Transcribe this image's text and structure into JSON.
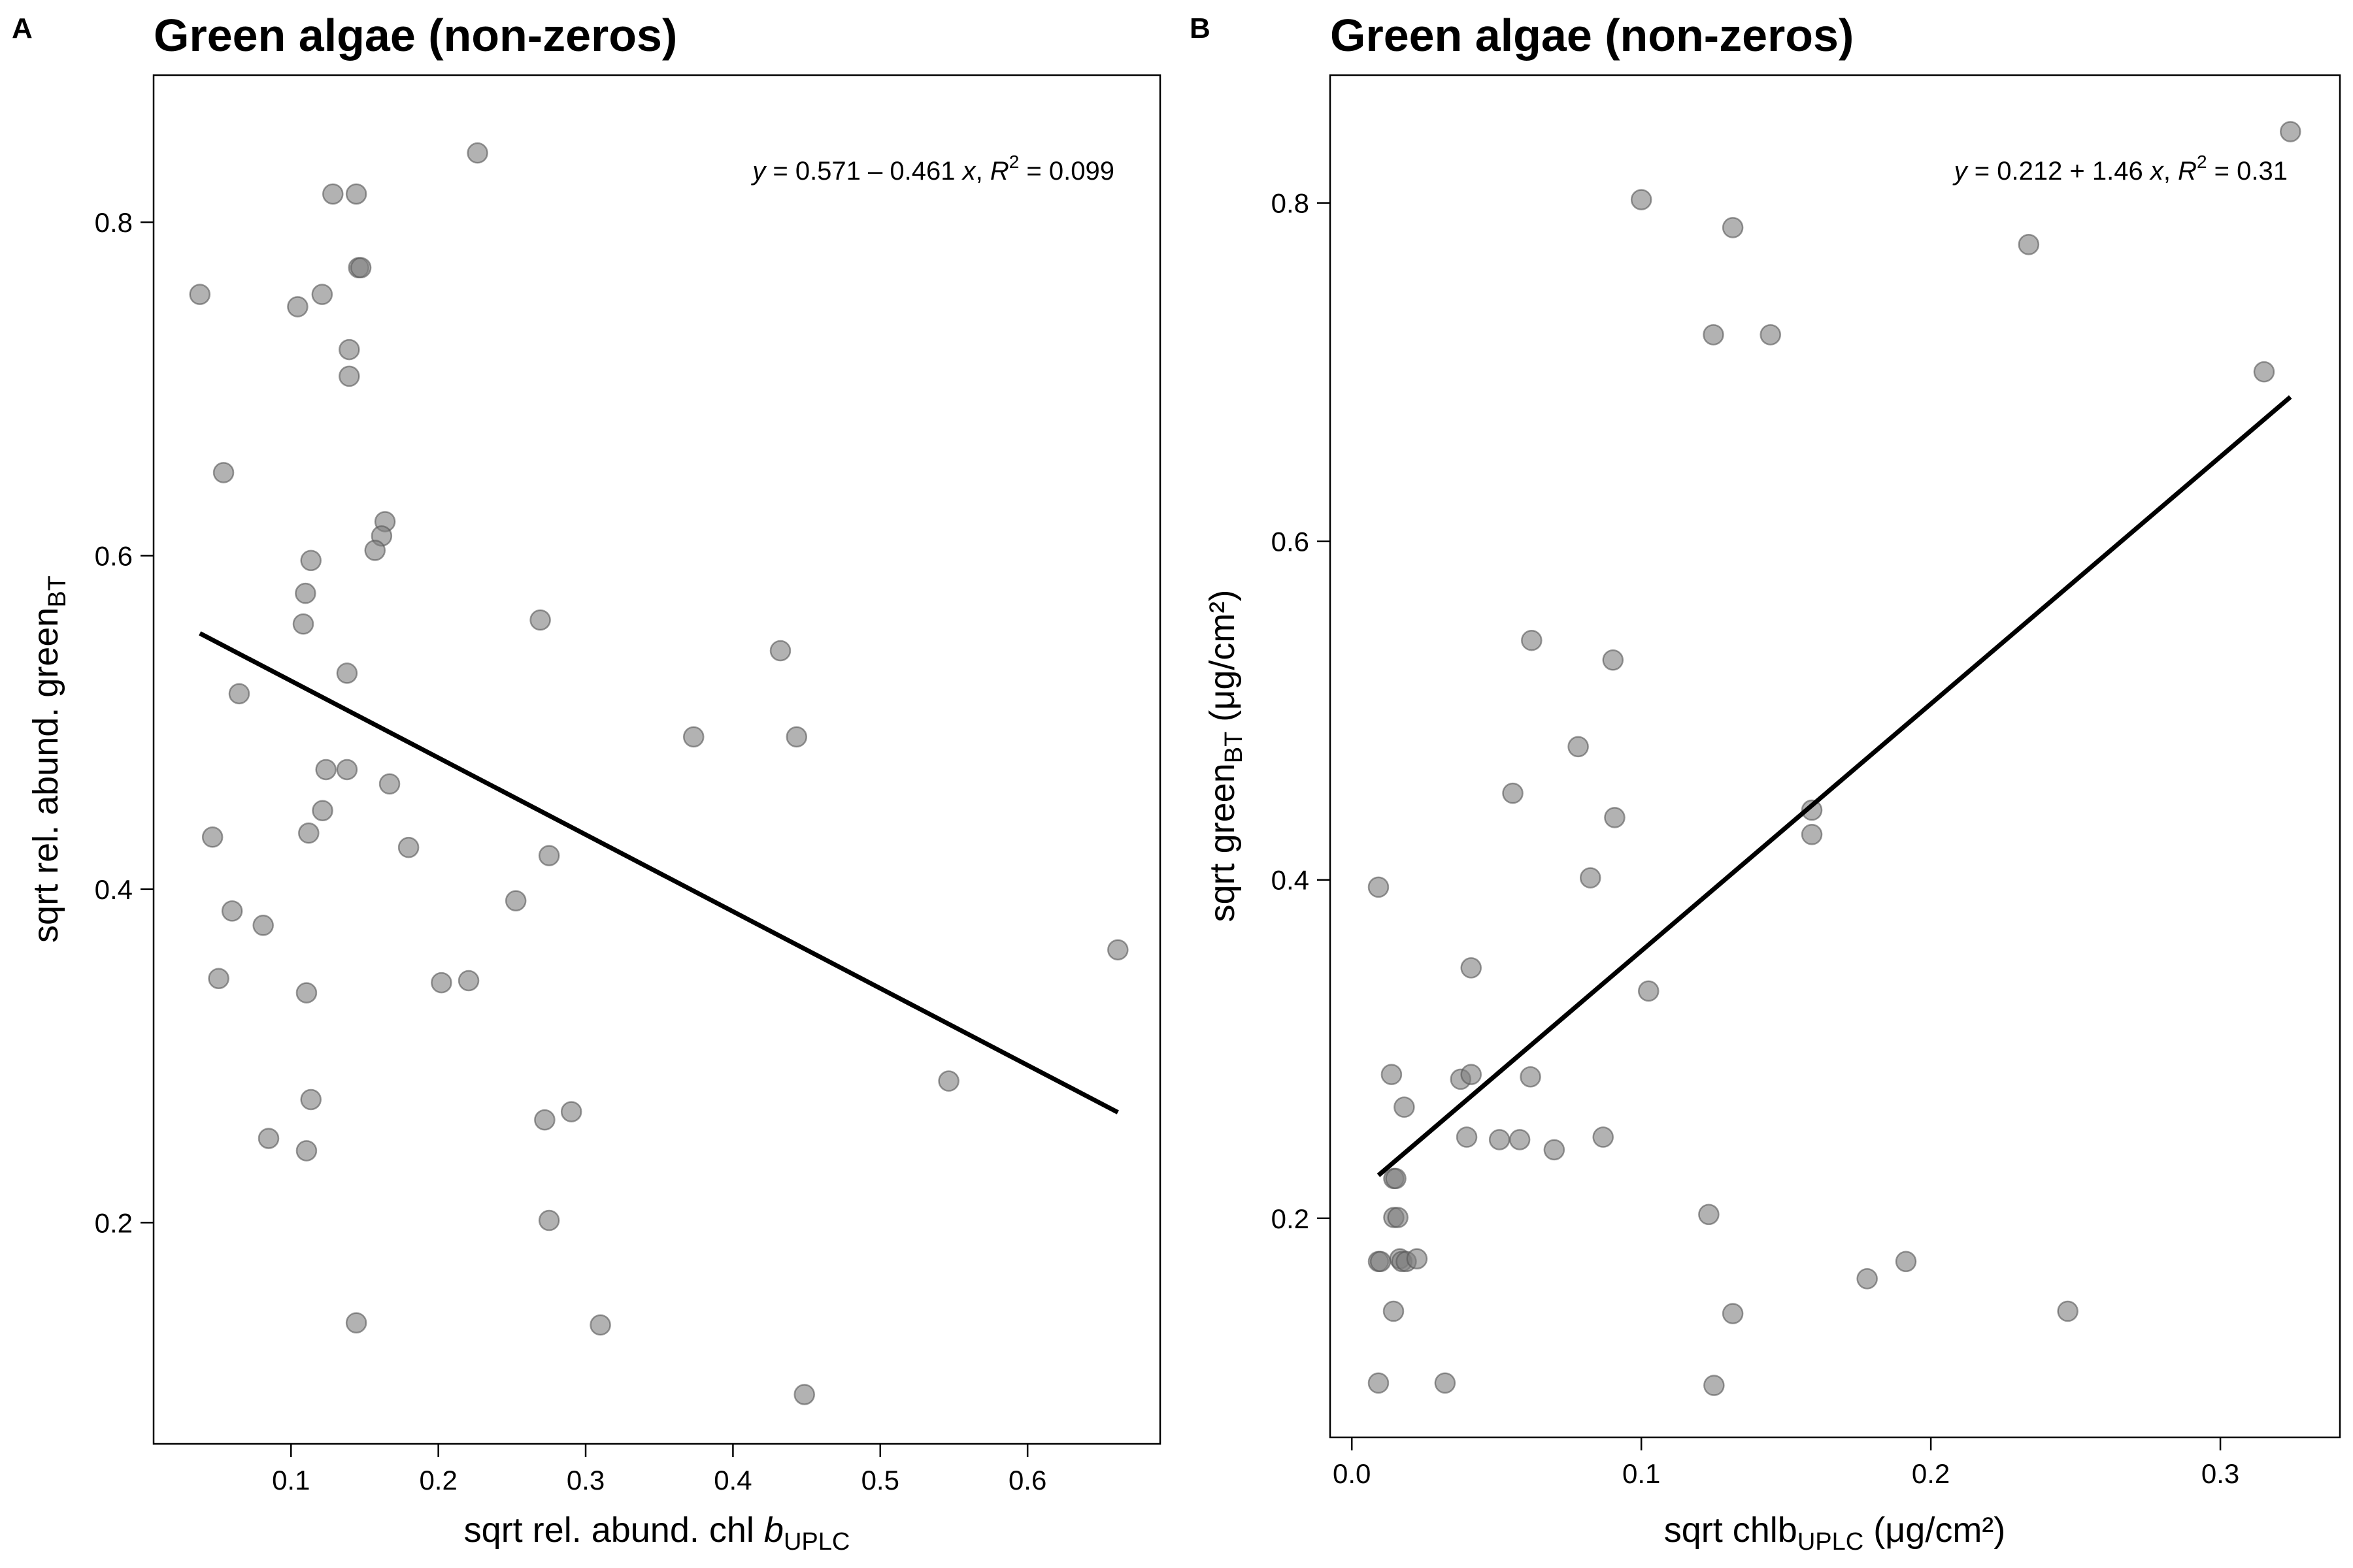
{
  "chart_data": [
    {
      "type": "scatter",
      "panel": "A",
      "title": "Green algae (non-zeros)",
      "xlabel": {
        "main": "sqrt rel. abund. chl ",
        "italic": "b",
        "sub": "UPLC",
        "unit": ""
      },
      "ylabel": {
        "main": "sqrt rel. abund. green",
        "sub": "BT",
        "unit": ""
      },
      "equation": {
        "y": "y",
        "mid": " = 0.571 – 0.461 ",
        "x": "x",
        "r": "R",
        "sup": "2",
        "val": " = 0.099"
      },
      "xlim": [
        0.0067,
        0.69
      ],
      "ylim": [
        0.0673,
        0.8882
      ],
      "xticks": [
        "0.1",
        "0.2",
        "0.3",
        "0.4",
        "0.5",
        "0.6"
      ],
      "yticks": [
        "0.2",
        "0.4",
        "0.6",
        "0.8"
      ],
      "fit": {
        "intercept": 0.571,
        "slope": -0.461,
        "x_from": 0.0381,
        "x_to": 0.6613
      },
      "points": [
        [
          0.0381,
          0.7567
        ],
        [
          0.1045,
          0.7493
        ],
        [
          0.1211,
          0.7567
        ],
        [
          0.1284,
          0.8169
        ],
        [
          0.1443,
          0.8169
        ],
        [
          0.1459,
          0.7727
        ],
        [
          0.1474,
          0.7727
        ],
        [
          0.1395,
          0.7236
        ],
        [
          0.1395,
          0.7076
        ],
        [
          0.2266,
          0.8415
        ],
        [
          0.0542,
          0.6498
        ],
        [
          0.1638,
          0.6204
        ],
        [
          0.1615,
          0.6118
        ],
        [
          0.157,
          0.6032
        ],
        [
          0.1135,
          0.5971
        ],
        [
          0.1098,
          0.5774
        ],
        [
          0.1083,
          0.559
        ],
        [
          0.138,
          0.5295
        ],
        [
          0.0648,
          0.5172
        ],
        [
          0.2692,
          0.5614
        ],
        [
          0.1237,
          0.4717
        ],
        [
          0.138,
          0.4717
        ],
        [
          0.1669,
          0.4631
        ],
        [
          0.112,
          0.4336
        ],
        [
          0.1214,
          0.4471
        ],
        [
          0.0467,
          0.4312
        ],
        [
          0.1798,
          0.425
        ],
        [
          0.2752,
          0.4201
        ],
        [
          0.3733,
          0.4913
        ],
        [
          0.4322,
          0.543
        ],
        [
          0.4432,
          0.4913
        ],
        [
          0.06,
          0.3869
        ],
        [
          0.0811,
          0.3783
        ],
        [
          0.2526,
          0.393
        ],
        [
          0.0509,
          0.3464
        ],
        [
          0.1105,
          0.3378
        ],
        [
          0.2021,
          0.3439
        ],
        [
          0.2206,
          0.3451
        ],
        [
          0.6613,
          0.3636
        ],
        [
          0.0848,
          0.2505
        ],
        [
          0.1105,
          0.2431
        ],
        [
          0.1135,
          0.2738
        ],
        [
          0.2722,
          0.2616
        ],
        [
          0.2903,
          0.2665
        ],
        [
          0.5465,
          0.2849
        ],
        [
          0.2752,
          0.2013
        ],
        [
          0.1443,
          0.1399
        ],
        [
          0.31,
          0.1386
        ],
        [
          0.4485,
          0.0969
        ]
      ]
    },
    {
      "type": "scatter",
      "panel": "B",
      "title": "Green algae (non-zeros)",
      "xlabel": {
        "main": "sqrt chlb",
        "italic": "",
        "sub": "UPLC",
        "unit": " (μg/cm²)"
      },
      "ylabel": {
        "main": "sqrt green",
        "sub": "BT",
        "unit": " (μg/cm²)"
      },
      "equation": {
        "y": "y",
        "mid": " = 0.212 + 1.46 ",
        "x": "x",
        "r": "R",
        "sup": "2",
        "val": " = 0.31"
      },
      "xlim": [
        -0.0075,
        0.3413
      ],
      "ylim": [
        0.0706,
        0.8755
      ],
      "xticks": [
        "0.0",
        "0.1",
        "0.2",
        "0.3"
      ],
      "yticks": [
        "0.2",
        "0.4",
        "0.6",
        "0.8"
      ],
      "fit": {
        "intercept": 0.212,
        "slope": 1.46,
        "x_from": 0.0092,
        "x_to": 0.3242
      },
      "points": [
        [
          0.0092,
          0.3957
        ],
        [
          0.0137,
          0.285
        ],
        [
          0.0181,
          0.2657
        ],
        [
          0.0145,
          0.2235
        ],
        [
          0.0152,
          0.2235
        ],
        [
          0.0145,
          0.2005
        ],
        [
          0.0159,
          0.2005
        ],
        [
          0.0092,
          0.1745
        ],
        [
          0.0099,
          0.1745
        ],
        [
          0.0166,
          0.1761
        ],
        [
          0.0173,
          0.1745
        ],
        [
          0.0188,
          0.1745
        ],
        [
          0.0225,
          0.1761
        ],
        [
          0.0144,
          0.1451
        ],
        [
          0.0092,
          0.1027
        ],
        [
          0.0322,
          0.1027
        ],
        [
          0.0376,
          0.2822
        ],
        [
          0.0397,
          0.248
        ],
        [
          0.0412,
          0.285
        ],
        [
          0.0412,
          0.348
        ],
        [
          0.051,
          0.2465
        ],
        [
          0.058,
          0.2465
        ],
        [
          0.0617,
          0.2836
        ],
        [
          0.0699,
          0.2405
        ],
        [
          0.0556,
          0.4512
        ],
        [
          0.0621,
          0.5415
        ],
        [
          0.0782,
          0.4787
        ],
        [
          0.0824,
          0.4012
        ],
        [
          0.0868,
          0.248
        ],
        [
          0.0902,
          0.5299
        ],
        [
          0.0908,
          0.4368
        ],
        [
          0.1025,
          0.3343
        ],
        [
          0.1,
          0.8019
        ],
        [
          0.1233,
          0.2023
        ],
        [
          0.1251,
          0.1013
        ],
        [
          0.1249,
          0.7221
        ],
        [
          0.1316,
          0.7854
        ],
        [
          0.1316,
          0.1437
        ],
        [
          0.1446,
          0.7221
        ],
        [
          0.1589,
          0.4412
        ],
        [
          0.1589,
          0.4268
        ],
        [
          0.178,
          0.1643
        ],
        [
          0.1914,
          0.1745
        ],
        [
          0.2338,
          0.7754
        ],
        [
          0.2473,
          0.1451
        ],
        [
          0.3151,
          0.7002
        ],
        [
          0.3242,
          0.8421
        ]
      ]
    }
  ]
}
